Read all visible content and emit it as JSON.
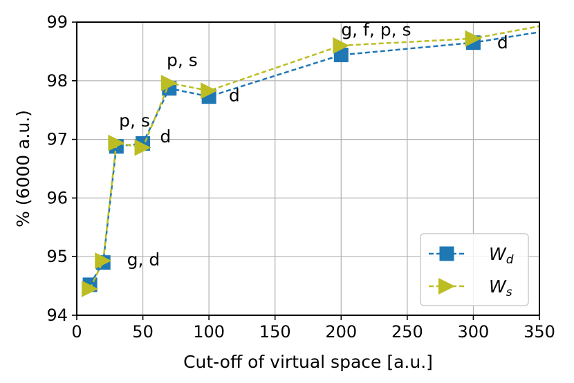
{
  "chart_data": {
    "type": "line",
    "xlabel": "Cut-off of virtual space [a.u.]",
    "ylabel": "% (6000 a.u.)",
    "xlim": [
      0,
      350
    ],
    "ylim": [
      94,
      99
    ],
    "xticks": [
      0,
      50,
      100,
      150,
      200,
      250,
      300,
      350
    ],
    "yticks": [
      94,
      95,
      96,
      97,
      98,
      99
    ],
    "grid": true,
    "legend_position": "bottom-right",
    "series": [
      {
        "name": "W",
        "subscript": "d",
        "color": "#1f77b4",
        "marker": "square",
        "linestyle": "dashed",
        "x": [
          10,
          20,
          30,
          50,
          70,
          100,
          200,
          300,
          350
        ],
        "y": [
          94.52,
          94.9,
          96.88,
          96.93,
          97.87,
          97.73,
          98.44,
          98.65,
          98.83
        ]
      },
      {
        "name": "W",
        "subscript": "s",
        "color": "#bcbd22",
        "marker": "triangle-right",
        "linestyle": "dashed",
        "x": [
          10,
          20,
          30,
          50,
          70,
          100,
          200,
          300,
          350
        ],
        "y": [
          94.45,
          94.93,
          96.94,
          96.86,
          97.96,
          97.83,
          98.6,
          98.72,
          98.93
        ]
      }
    ],
    "annotations": [
      {
        "text": "g, d",
        "x": 38,
        "y": 94.85
      },
      {
        "text": "p, s",
        "x": 32,
        "y": 97.22
      },
      {
        "text": "d",
        "x": 63,
        "y": 96.95
      },
      {
        "text": "p, s",
        "x": 68,
        "y": 98.25
      },
      {
        "text": "d",
        "x": 115,
        "y": 97.65
      },
      {
        "text": "g, f, p, s",
        "x": 200,
        "y": 98.77
      },
      {
        "text": "d",
        "x": 318,
        "y": 98.55
      }
    ]
  }
}
